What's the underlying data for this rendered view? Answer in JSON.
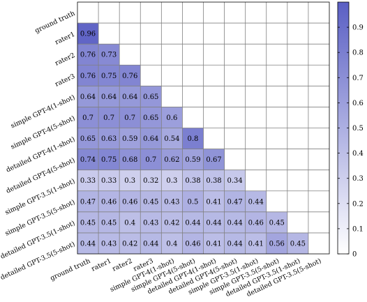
{
  "chart_data": {
    "type": "heatmap",
    "labels": [
      "ground truth",
      "rater1",
      "rater2",
      "rater3",
      "simple GPT-4(1-shot)",
      "simple GPT-4(5-shot)",
      "detailed GPT-4(1-shot)",
      "detailed GPT-4(5-shot)",
      "simple GPT-3.5(1-shot)",
      "simple GPT-3.5(5-shot)",
      "detailed GPT-3.5(1-shot)",
      "detailed GPT-3.5(5-shot)"
    ],
    "values": [
      [],
      [
        0.96
      ],
      [
        0.76,
        0.73
      ],
      [
        0.76,
        0.75,
        0.76
      ],
      [
        0.64,
        0.64,
        0.64,
        0.65
      ],
      [
        0.7,
        0.7,
        0.7,
        0.65,
        0.6
      ],
      [
        0.65,
        0.63,
        0.59,
        0.64,
        0.54,
        0.8
      ],
      [
        0.74,
        0.75,
        0.68,
        0.7,
        0.62,
        0.59,
        0.67
      ],
      [
        0.33,
        0.33,
        0.3,
        0.32,
        0.3,
        0.38,
        0.38,
        0.34
      ],
      [
        0.47,
        0.46,
        0.46,
        0.45,
        0.43,
        0.5,
        0.41,
        0.47,
        0.44
      ],
      [
        0.45,
        0.45,
        0.4,
        0.43,
        0.42,
        0.44,
        0.44,
        0.44,
        0.46,
        0.45
      ],
      [
        0.44,
        0.43,
        0.42,
        0.44,
        0.4,
        0.46,
        0.41,
        0.44,
        0.41,
        0.56,
        0.45
      ]
    ],
    "value_labels": [
      [],
      [
        "0.96"
      ],
      [
        "0.76",
        "0.73"
      ],
      [
        "0.76",
        "0.75",
        "0.76"
      ],
      [
        "0.64",
        "0.64",
        "0.64",
        "0.65"
      ],
      [
        "0.7",
        "0.7",
        "0.7",
        "0.65",
        "0.6"
      ],
      [
        "0.65",
        "0.63",
        "0.59",
        "0.64",
        "0.54",
        "0.8"
      ],
      [
        "0.74",
        "0.75",
        "0.68",
        "0.7",
        "0.62",
        "0.59",
        "0.67"
      ],
      [
        "0.33",
        "0.33",
        "0.3",
        "0.32",
        "0.3",
        "0.38",
        "0.38",
        "0.34"
      ],
      [
        "0.47",
        "0.46",
        "0.46",
        "0.45",
        "0.43",
        "0.5",
        "0.41",
        "0.47",
        "0.44"
      ],
      [
        "0.45",
        "0.45",
        "0.4",
        "0.43",
        "0.42",
        "0.44",
        "0.44",
        "0.44",
        "0.46",
        "0.45"
      ],
      [
        "0.44",
        "0.43",
        "0.42",
        "0.44",
        "0.4",
        "0.46",
        "0.41",
        "0.44",
        "0.41",
        "0.56",
        "0.45"
      ]
    ],
    "colorbar": {
      "range": [
        0,
        1
      ],
      "ticks": [
        "0",
        "0.1",
        "0.2",
        "0.3",
        "0.4",
        "0.5",
        "0.6",
        "0.7",
        "0.8",
        "0.9"
      ],
      "color_low": "#ffffff",
      "color_high": "#5a5fc4"
    }
  }
}
